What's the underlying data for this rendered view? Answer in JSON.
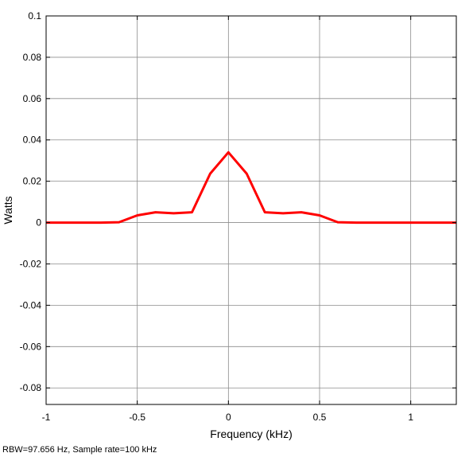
{
  "chart_data": {
    "type": "line",
    "title": "",
    "xlabel": "Frequency (kHz)",
    "ylabel": "Watts",
    "xlim": [
      -1.0,
      1.25
    ],
    "ylim": [
      -0.088,
      0.1
    ],
    "grid": true,
    "x_ticks": [
      -1,
      -0.5,
      0,
      0.5,
      1
    ],
    "x_tick_labels": [
      "-1",
      "-0.5",
      "0",
      "0.5",
      "1"
    ],
    "y_ticks": [
      0.1,
      0.08,
      0.06,
      0.04,
      0.02,
      0,
      -0.02,
      -0.04,
      -0.06,
      -0.08
    ],
    "y_tick_labels": [
      "0.1",
      "0.08",
      "0.06",
      "0.04",
      "0.02",
      "0",
      "-0.02",
      "-0.04",
      "-0.06",
      "-0.08"
    ],
    "series": [
      {
        "color": "#ff0000",
        "x": [
          -1.0,
          -0.9,
          -0.8,
          -0.7,
          -0.6,
          -0.5,
          -0.4,
          -0.3,
          -0.2,
          -0.1,
          0.0,
          0.1,
          0.2,
          0.3,
          0.4,
          0.5,
          0.6,
          0.7,
          0.8,
          0.9,
          1.0,
          1.1,
          1.2,
          1.25
        ],
        "y": [
          0.0,
          0.0,
          0.0,
          0.0,
          0.0002,
          0.0035,
          0.005,
          0.0045,
          0.005,
          0.0237,
          0.034,
          0.0237,
          0.005,
          0.0045,
          0.005,
          0.0035,
          0.0002,
          0.0,
          0.0,
          0.0,
          0.0,
          0.0,
          0.0,
          0.0
        ]
      }
    ]
  },
  "footer": "RBW=97.656 Hz, Sample rate=100 kHz"
}
